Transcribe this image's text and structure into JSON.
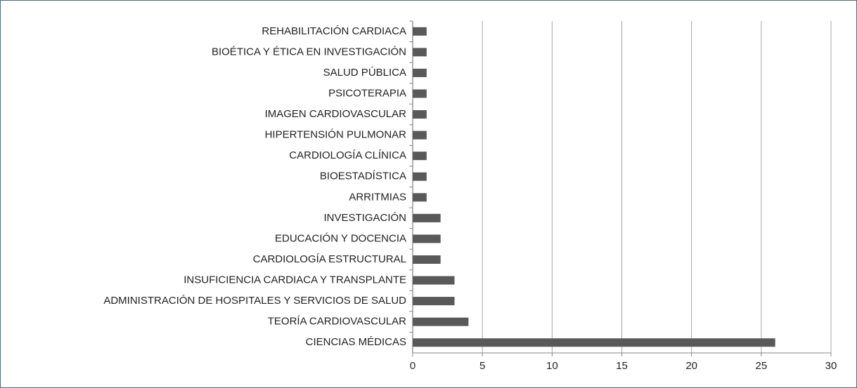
{
  "chart_data": {
    "type": "barh",
    "categories": [
      "REHABILITACIÓN CARDIACA",
      "BIOÉTICA Y ÉTICA EN INVESTIGACIÓN",
      "SALUD PÚBLICA",
      "PSICOTERAPIA",
      "IMAGEN CARDIOVASCULAR",
      "HIPERTENSIÓN PULMONAR",
      "CARDIOLOGÍA CLÍNICA",
      "BIOESTADÍSTICA",
      "ARRITMIAS",
      "INVESTIGACIÓN",
      "EDUCACIÓN Y DOCENCIA",
      "CARDIOLOGÍA ESTRUCTURAL",
      "INSUFICIENCIA CARDIACA Y TRANSPLANTE",
      "ADMINISTRACIÓN DE HOSPITALES Y SERVICIOS DE SALUD",
      "TEORÍA CARDIOVASCULAR",
      "CIENCIAS MÉDICAS"
    ],
    "values": [
      1,
      1,
      1,
      1,
      1,
      1,
      1,
      1,
      1,
      2,
      2,
      2,
      3,
      3,
      4,
      26
    ],
    "color": "#595959",
    "xlim": [
      0,
      30
    ],
    "xticks": [
      0,
      5,
      10,
      15,
      20,
      25,
      30
    ],
    "grid": true
  }
}
